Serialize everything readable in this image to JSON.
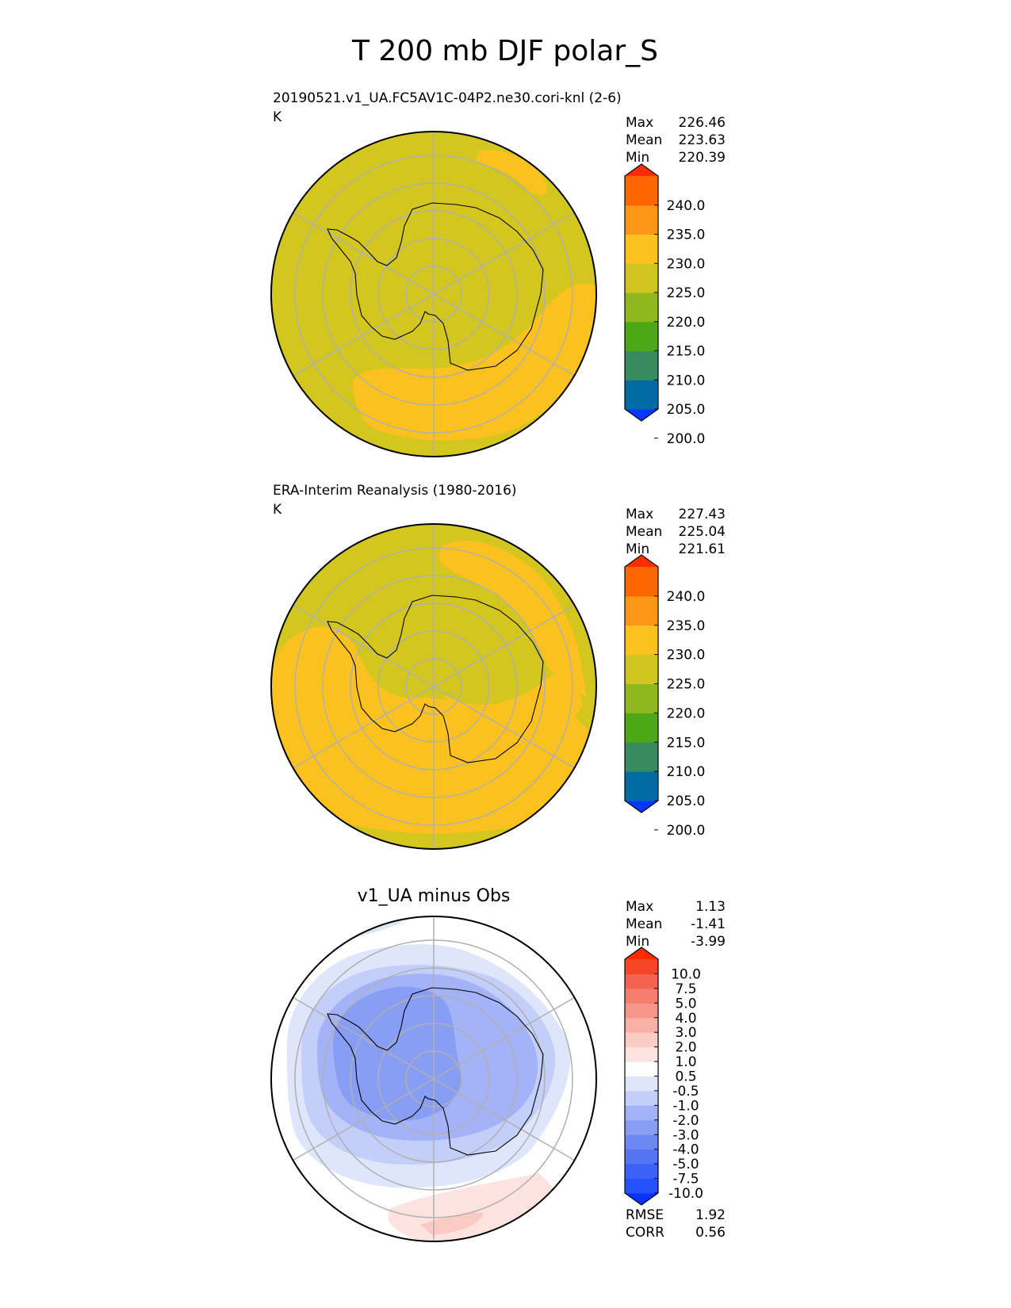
{
  "title": "T 200 mb DJF polar_S",
  "panels": [
    {
      "id": "test",
      "heading": "20190521.v1_UA.FC5AV1C-04P2.ne30.cori-knl (2-6)",
      "units": "K",
      "center_title": "",
      "stats": [
        {
          "label": "Max",
          "value": "226.46"
        },
        {
          "label": "Mean",
          "value": "223.63"
        },
        {
          "label": "Min",
          "value": "220.39"
        }
      ],
      "colorbar": {
        "labels": [
          "240.0",
          "235.0",
          "230.0",
          "225.0",
          "220.0",
          "215.0",
          "210.0",
          "205.0",
          "200.0"
        ],
        "colors": [
          "#0038ff",
          "#006ca3",
          "#378b5e",
          "#4ca816",
          "#8fb81f",
          "#d1c61f",
          "#fbc21f",
          "#fd9715",
          "#fe6700",
          "#ff2c00"
        ]
      },
      "metrics": []
    },
    {
      "id": "reference",
      "heading": "ERA-Interim Reanalysis (1980-2016)",
      "units": "K",
      "center_title": "",
      "stats": [
        {
          "label": "Max",
          "value": "227.43"
        },
        {
          "label": "Mean",
          "value": "225.04"
        },
        {
          "label": "Min",
          "value": "221.61"
        }
      ],
      "colorbar": {
        "labels": [
          "240.0",
          "235.0",
          "230.0",
          "225.0",
          "220.0",
          "215.0",
          "210.0",
          "205.0",
          "200.0"
        ],
        "colors": [
          "#0038ff",
          "#006ca3",
          "#378b5e",
          "#4ca816",
          "#8fb81f",
          "#d1c61f",
          "#fbc21f",
          "#fd9715",
          "#fe6700",
          "#ff2c00"
        ]
      },
      "metrics": []
    },
    {
      "id": "difference",
      "heading": "",
      "units": "",
      "center_title": "v1_UA minus Obs",
      "stats": [
        {
          "label": "Max",
          "value": "1.13"
        },
        {
          "label": "Mean",
          "value": "-1.41"
        },
        {
          "label": "Min",
          "value": "-3.99"
        }
      ],
      "colorbar": {
        "labels": [
          "10.0",
          "7.5",
          "5.0",
          "4.0",
          "3.0",
          "2.0",
          "1.0",
          "0.5",
          "-0.5",
          "-1.0",
          "-2.0",
          "-3.0",
          "-4.0",
          "-5.0",
          "-7.5",
          "-10.0"
        ],
        "colors": [
          "#0a32ff",
          "#2650ff",
          "#3a60f8",
          "#5474f2",
          "#6d88f2",
          "#889df4",
          "#a4b3f7",
          "#c4cff9",
          "#dfe5fb",
          "#ffffff",
          "#fde3e0",
          "#fbcac3",
          "#f9b0a6",
          "#f7968a",
          "#f57d6e",
          "#f46250",
          "#f74527",
          "#ff2a00"
        ]
      },
      "metrics": [
        {
          "label": "RMSE",
          "value": "1.92"
        },
        {
          "label": "CORR",
          "value": "0.56"
        }
      ]
    }
  ],
  "legend_colors": {
    "field_base": "#d2c61f",
    "field_warm": "#fbc21f",
    "diff_neg_1": "#dfe5fb",
    "diff_neg_2": "#c4cff9",
    "diff_neg_3": "#a4b3f7",
    "diff_neg_4": "#889df4",
    "diff_pos_1": "#fde3e0",
    "diff_pos_2": "#fbcac3",
    "grid": "#b0b0b0"
  }
}
